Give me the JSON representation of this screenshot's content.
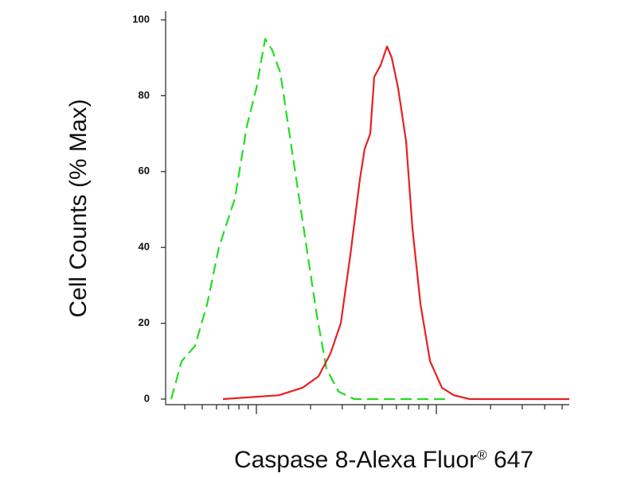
{
  "chart_data": {
    "type": "line",
    "ylabel": "Cell Counts (% Max)",
    "xlabel_parts": [
      "Caspase 8-Alexa Fluor",
      "®",
      " 647"
    ],
    "xscale": "log",
    "xlim": [
      31.3,
      5480
    ],
    "xticks": [
      100,
      1000
    ],
    "xminor_ticks": [
      40,
      50,
      60,
      70,
      80,
      90,
      200,
      300,
      400,
      500,
      600,
      700,
      800,
      900,
      2000,
      3000,
      4000,
      5000
    ],
    "ylim": [
      0,
      100
    ],
    "yticks": [
      0,
      20,
      40,
      60,
      80,
      100
    ],
    "series": [
      {
        "color": "#22dd22",
        "dash": true,
        "x": [
          33.6,
          38.4,
          45.6,
          53.2,
          61.9,
          76,
          88.5,
          100,
          111.9,
          122.6,
          135.8,
          147.3,
          166.5,
          190,
          216.9,
          245,
          285.6,
          350,
          500,
          1189
        ],
        "values": [
          0,
          10,
          14,
          25,
          40,
          53,
          72,
          82,
          95,
          92,
          86,
          75,
          58,
          40,
          22,
          8,
          2,
          0,
          0,
          0
        ]
      },
      {
        "color": "#e82020",
        "dash": false,
        "x": [
          65.2,
          133,
          180.6,
          221.4,
          258,
          294.4,
          332.7,
          376,
          399.7,
          429.3,
          451.6,
          490,
          531.9,
          565,
          613.3,
          679,
          736.5,
          816,
          922,
          1074,
          1251,
          1535,
          5480
        ],
        "values": [
          0,
          1,
          3,
          6,
          12,
          20,
          38,
          58,
          66,
          70,
          85,
          88,
          93,
          90,
          82,
          68,
          45,
          25,
          10,
          3,
          1,
          0,
          0
        ]
      }
    ]
  }
}
